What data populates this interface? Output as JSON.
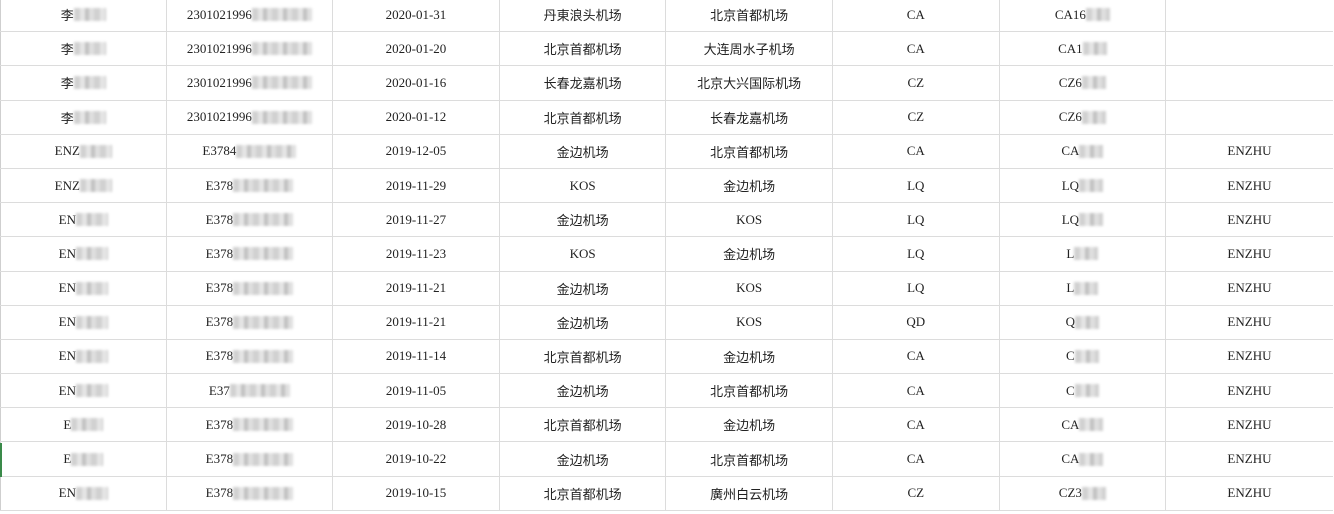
{
  "rows": [
    {
      "name": "李",
      "id": "2301021996",
      "date": "2020-01-31",
      "from": "丹東浪头机场",
      "to": "北京首都机场",
      "airline": "CA",
      "flight": "CA16",
      "passenger": ""
    },
    {
      "name": "李",
      "id": "2301021996",
      "date": "2020-01-20",
      "from": "北京首都机场",
      "to": "大连周水子机场",
      "airline": "CA",
      "flight": "CA1",
      "passenger": ""
    },
    {
      "name": "李",
      "id": "2301021996",
      "date": "2020-01-16",
      "from": "长春龙嘉机场",
      "to": "北京大兴国际机场",
      "airline": "CZ",
      "flight": "CZ6",
      "passenger": ""
    },
    {
      "name": "李",
      "id": "2301021996",
      "date": "2020-01-12",
      "from": "北京首都机场",
      "to": "长春龙嘉机场",
      "airline": "CZ",
      "flight": "CZ6",
      "passenger": ""
    },
    {
      "name": "ENZ",
      "id": "E3784",
      "date": "2019-12-05",
      "from": "金边机场",
      "to": "北京首都机场",
      "airline": "CA",
      "flight": "CA",
      "passenger": "ENZHU"
    },
    {
      "name": "ENZ",
      "id": "E378",
      "date": "2019-11-29",
      "from": "KOS",
      "to": "金边机场",
      "airline": "LQ",
      "flight": "LQ",
      "passenger": "ENZHU"
    },
    {
      "name": "EN",
      "id": "E378",
      "date": "2019-11-27",
      "from": "金边机场",
      "to": "KOS",
      "airline": "LQ",
      "flight": "LQ",
      "passenger": "ENZHU"
    },
    {
      "name": "EN",
      "id": "E378",
      "date": "2019-11-23",
      "from": "KOS",
      "to": "金边机场",
      "airline": "LQ",
      "flight": "L",
      "passenger": "ENZHU"
    },
    {
      "name": "EN",
      "id": "E378",
      "date": "2019-11-21",
      "from": "金边机场",
      "to": "KOS",
      "airline": "LQ",
      "flight": "L",
      "passenger": "ENZHU"
    },
    {
      "name": "EN",
      "id": "E378",
      "date": "2019-11-21",
      "from": "金边机场",
      "to": "KOS",
      "airline": "QD",
      "flight": "Q",
      "passenger": "ENZHU"
    },
    {
      "name": "EN",
      "id": "E378",
      "date": "2019-11-14",
      "from": "北京首都机场",
      "to": "金边机场",
      "airline": "CA",
      "flight": "C",
      "passenger": "ENZHU"
    },
    {
      "name": "EN",
      "id": "E37",
      "date": "2019-11-05",
      "from": "金边机场",
      "to": "北京首都机场",
      "airline": "CA",
      "flight": "C",
      "passenger": "ENZHU"
    },
    {
      "name": "E",
      "id": "E378",
      "date": "2019-10-28",
      "from": "北京首都机场",
      "to": "金边机场",
      "airline": "CA",
      "flight": "CA",
      "passenger": "ENZHU"
    },
    {
      "name": "E",
      "id": "E378",
      "date": "2019-10-22",
      "from": "金边机场",
      "to": "北京首都机场",
      "airline": "CA",
      "flight": "CA",
      "passenger": "ENZHU"
    },
    {
      "name": "EN",
      "id": "E378",
      "date": "2019-10-15",
      "from": "北京首都机场",
      "to": "廣州白云机场",
      "airline": "CZ",
      "flight": "CZ3",
      "passenger": "ENZHU"
    }
  ]
}
